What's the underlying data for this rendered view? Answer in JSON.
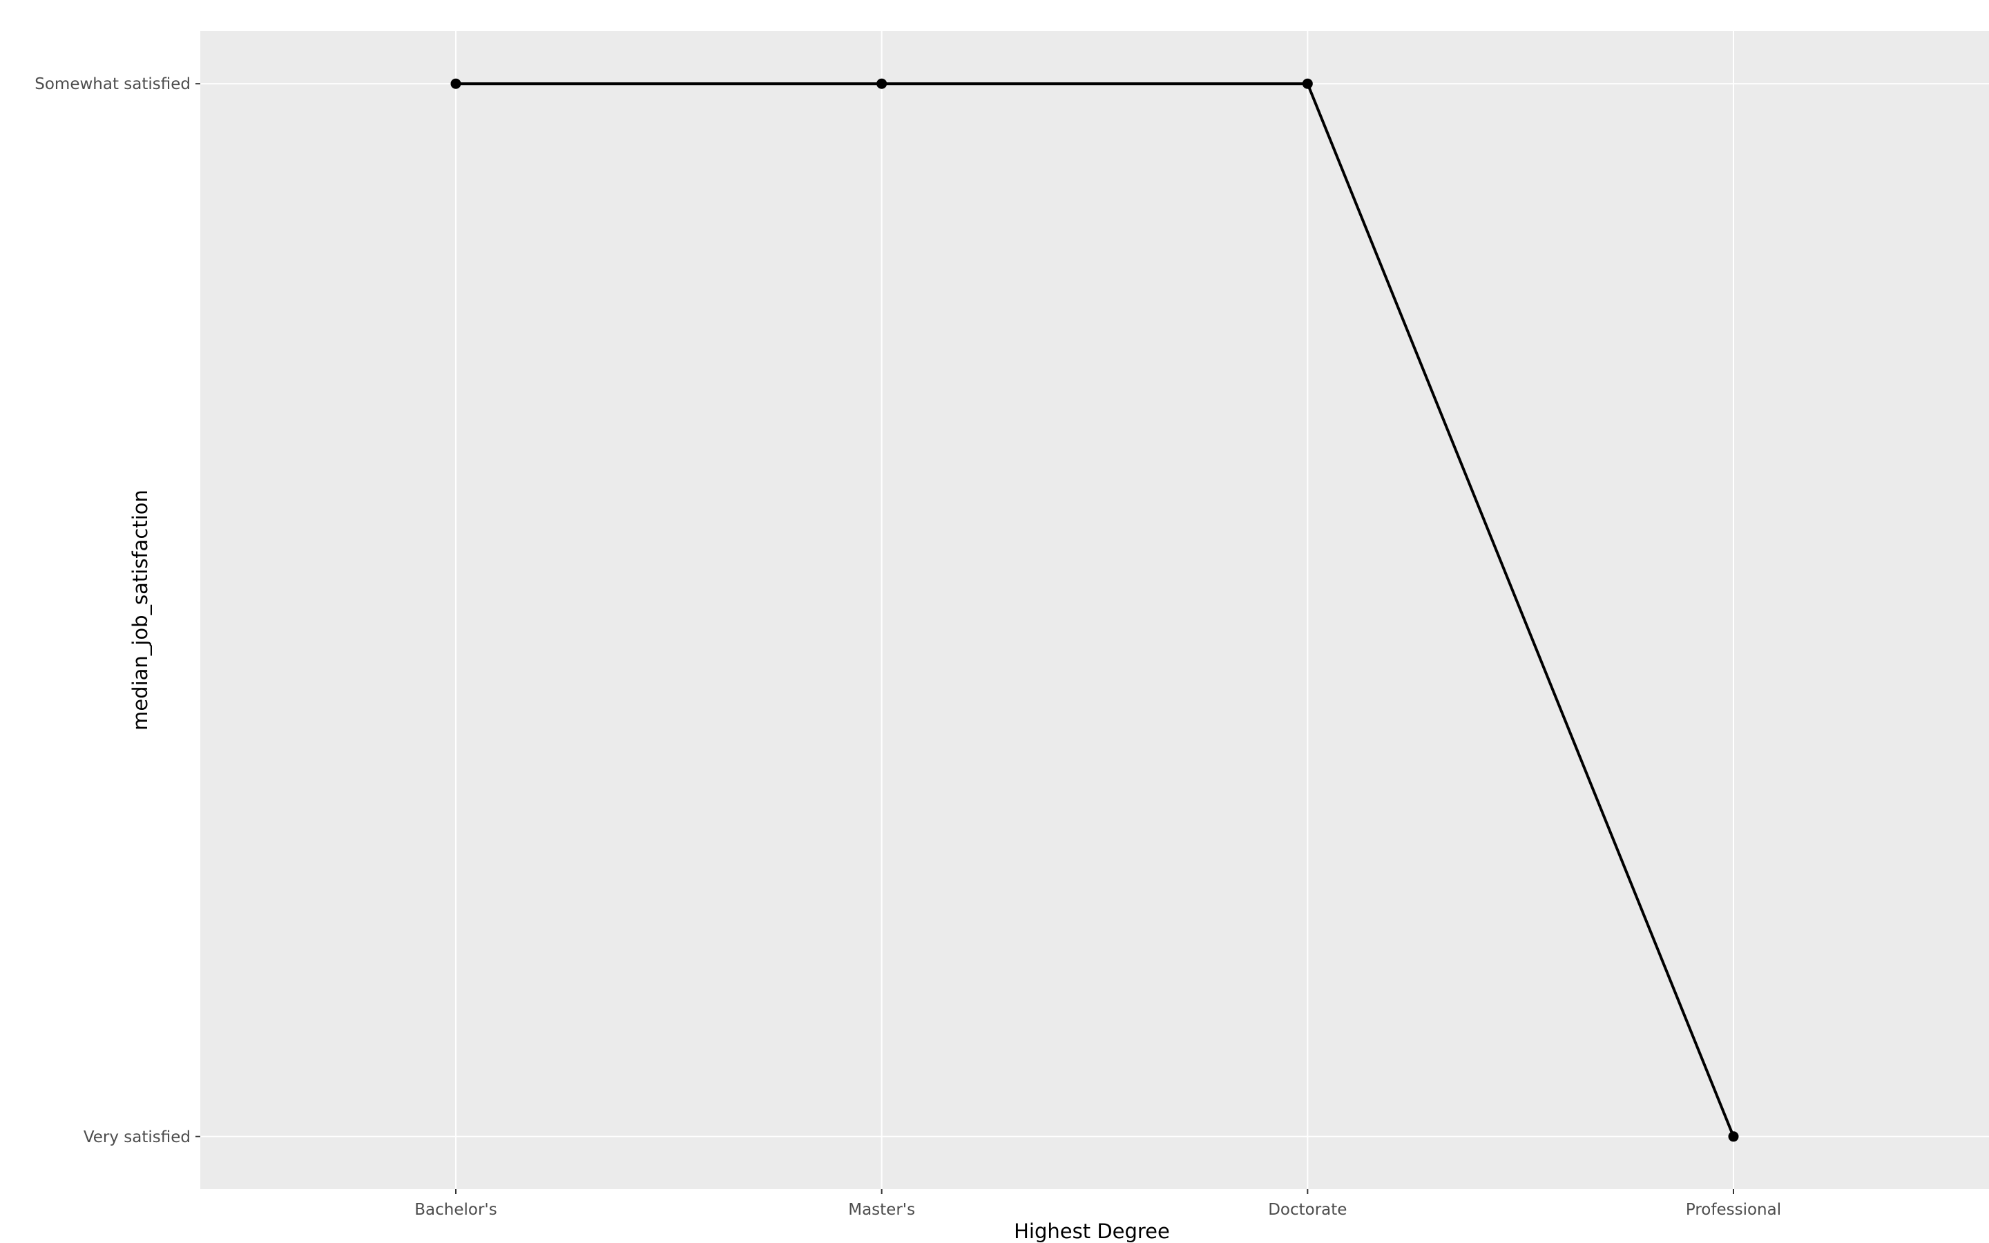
{
  "chart_data": {
    "type": "line",
    "title": "",
    "xlabel": "Highest Degree",
    "ylabel": "median_job_satisfaction",
    "categories": [
      "Bachelor's",
      "Master's",
      "Doctorate",
      "Professional"
    ],
    "y_categories": [
      "Very satisfied",
      "Somewhat satisfied"
    ],
    "series": [
      {
        "values": [
          "Somewhat satisfied",
          "Somewhat satisfied",
          "Somewhat satisfied",
          "Very satisfied"
        ],
        "color": "#000000"
      }
    ],
    "grid": true,
    "legend": "none",
    "colors": {
      "panel_background": "#ebebeb",
      "grid_line": "#ffffff",
      "tick_text": "#4d4d4d",
      "axis_ticks": "#333333"
    }
  }
}
